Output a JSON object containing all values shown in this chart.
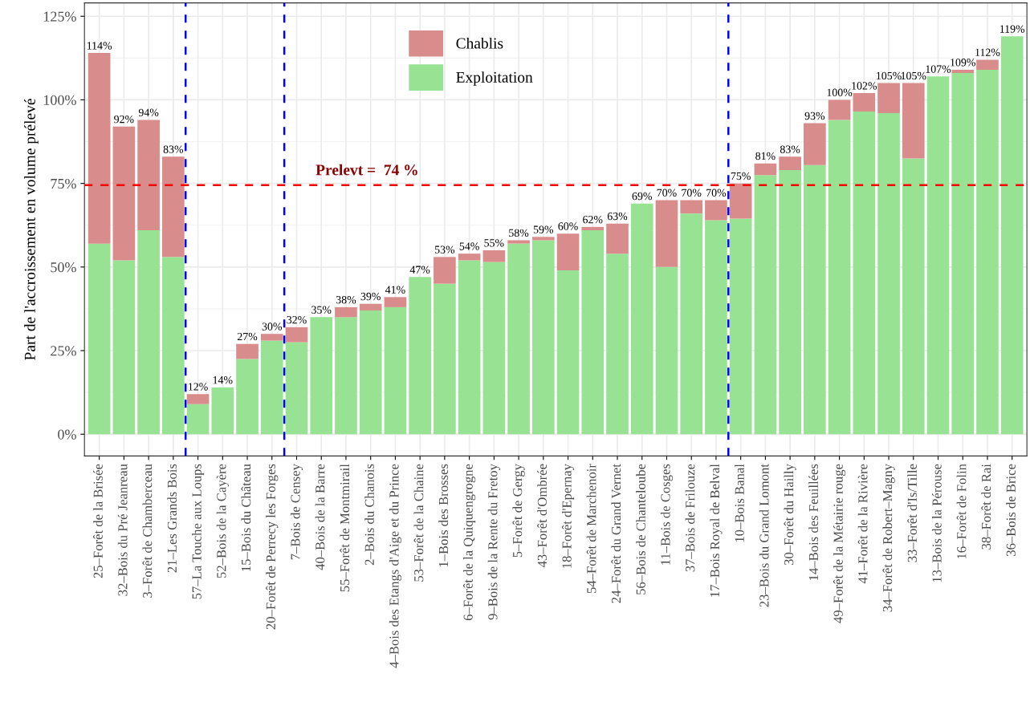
{
  "chart_data": {
    "type": "bar",
    "stacked": true,
    "ylabel": "Part de l'accroissement en volume prélevé",
    "categories": [
      "25–Forêt de la Brisée",
      "32–Bois du Pré Jeanreau",
      "3–Forêt de Chamberceau",
      "21–Les Grands Bois",
      "57–La Touche aux Loups",
      "52–Bois de la Cayère",
      "15–Bois du Château",
      "20–Forêt de Perrecy les Forges",
      "7–Bois de Censey",
      "40–Bois de la Barre",
      "55–Forêt de Montmirail",
      "2–Bois du Chanois",
      "4–Bois des Etangs d'Aige et du Prince",
      "53–Forêt de la Chaine",
      "1–Bois des Brosses",
      "6–Forêt de la Quiquengrogne",
      "9–Bois de la Rente du Fretoy",
      "5–Forêt de Gergy",
      "43–Forêt d'Ombrée",
      "18–Forêt d'Epernay",
      "54–Forêt de Marchenoir",
      "24–Forêt du Grand Vernet",
      "56–Bois de Chanteloube",
      "11–Bois de Cosges",
      "37–Bois de Frilouze",
      "17–Bois Royal de Belval",
      "10–Bois Banal",
      "23–Bois du Grand Lomont",
      "30–Forêt du Hailly",
      "14–Bois des Feuillées",
      "49–Forêt de la Métairie rouge",
      "41–Forêt de la Rivière",
      "34–Forêt de Robert–Magny",
      "33–Forêt d'Is/Tille",
      "13–Bois de la Pérouse",
      "16–Forêt de Folin",
      "38–Forêt de Rai",
      "36–Bois de Brice"
    ],
    "series": [
      {
        "name": "Exploitation",
        "color": "#98e393",
        "values": [
          57,
          52,
          61,
          53,
          9,
          14,
          22.5,
          28,
          27.5,
          35,
          35,
          37,
          38,
          47,
          45,
          52,
          51.5,
          57,
          58,
          49,
          61,
          54,
          69,
          50,
          66,
          64,
          64.5,
          77.5,
          79,
          80.5,
          94,
          96.5,
          96,
          82.5,
          107,
          108,
          109,
          119
        ]
      },
      {
        "name": "Chablis",
        "color": "#d98c8c",
        "values": [
          57,
          40,
          33,
          30,
          3,
          0,
          4.5,
          2,
          4.5,
          0,
          3,
          2,
          3,
          0,
          8,
          2,
          3.5,
          1,
          1,
          11,
          1,
          9,
          0,
          20,
          4,
          6,
          10.5,
          3.5,
          4,
          12.5,
          6,
          5.5,
          9,
          22.5,
          0,
          1,
          3,
          0
        ]
      }
    ],
    "totals": [
      "114%",
      "92%",
      "94%",
      "83%",
      "12%",
      "14%",
      "27%",
      "30%",
      "32%",
      "35%",
      "38%",
      "39%",
      "41%",
      "47%",
      "53%",
      "54%",
      "55%",
      "58%",
      "59%",
      "60%",
      "62%",
      "63%",
      "69%",
      "70%",
      "70%",
      "70%",
      "75%",
      "81%",
      "83%",
      "93%",
      "100%",
      "102%",
      "105%",
      "105%",
      "107%",
      "109%",
      "112%",
      "119%"
    ],
    "ylim": [
      -6.5,
      129
    ],
    "yticks": [
      {
        "value": 0,
        "label": "0%"
      },
      {
        "value": 25,
        "label": "25%"
      },
      {
        "value": 50,
        "label": "50%"
      },
      {
        "value": 75,
        "label": "75%"
      },
      {
        "value": 100,
        "label": "100%"
      },
      {
        "value": 125,
        "label": "125%"
      }
    ],
    "ref_lines": [
      {
        "axis": "y",
        "value": 74.5,
        "label": "Prelevt =  74 %",
        "color": "#ff0000",
        "line_style": "dashed"
      }
    ],
    "grid": true,
    "legend": "top"
  }
}
